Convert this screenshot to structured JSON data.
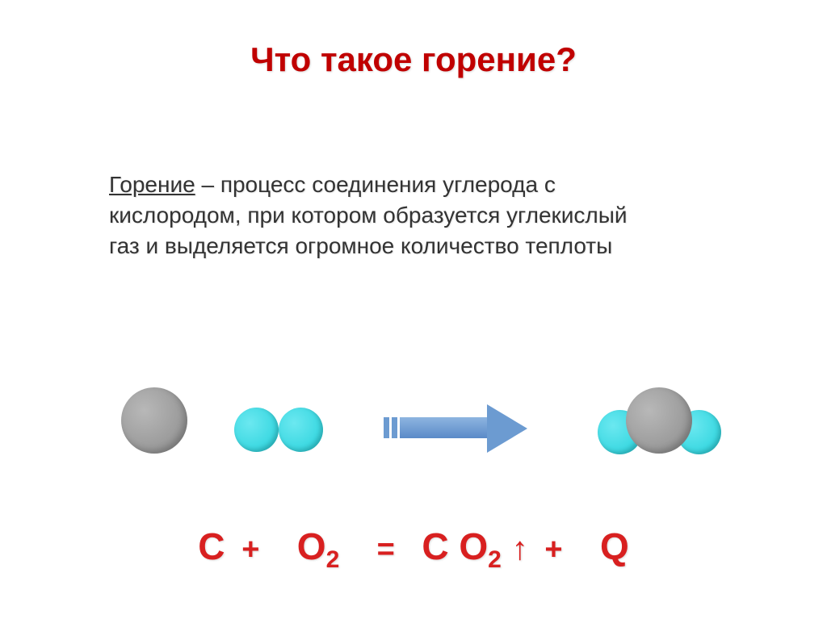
{
  "title": "Что такое горение?",
  "definition": {
    "term": "Горение",
    "text": " – процесс соединения углерода с  кислородом, при котором образуется углекислый  газ и выделяется огромное количество теплоты"
  },
  "diagram": {
    "type": "molecule-reaction",
    "atoms": {
      "carbon": {
        "color_light": "#b8b8b8",
        "color_dark": "#8a8a8a",
        "size": 82
      },
      "oxygen": {
        "color_light": "#6be8f0",
        "color_dark": "#22d0da",
        "size": 55
      }
    },
    "arrow": {
      "color": "#6c9bd1",
      "gradient_light": "#8eb5e0",
      "gradient_dark": "#5a8ac8"
    },
    "background_color": "#ffffff"
  },
  "equation": {
    "parts": {
      "C": "C",
      "plus": "+",
      "O": "O",
      "sub2": "2",
      "equals": "=",
      "space": " ",
      "arrow": "↑",
      "Q": "Q"
    },
    "color": "#d82020",
    "fontsize": 46
  },
  "colors": {
    "title": "#c00000",
    "text": "#333333",
    "background": "#ffffff"
  }
}
